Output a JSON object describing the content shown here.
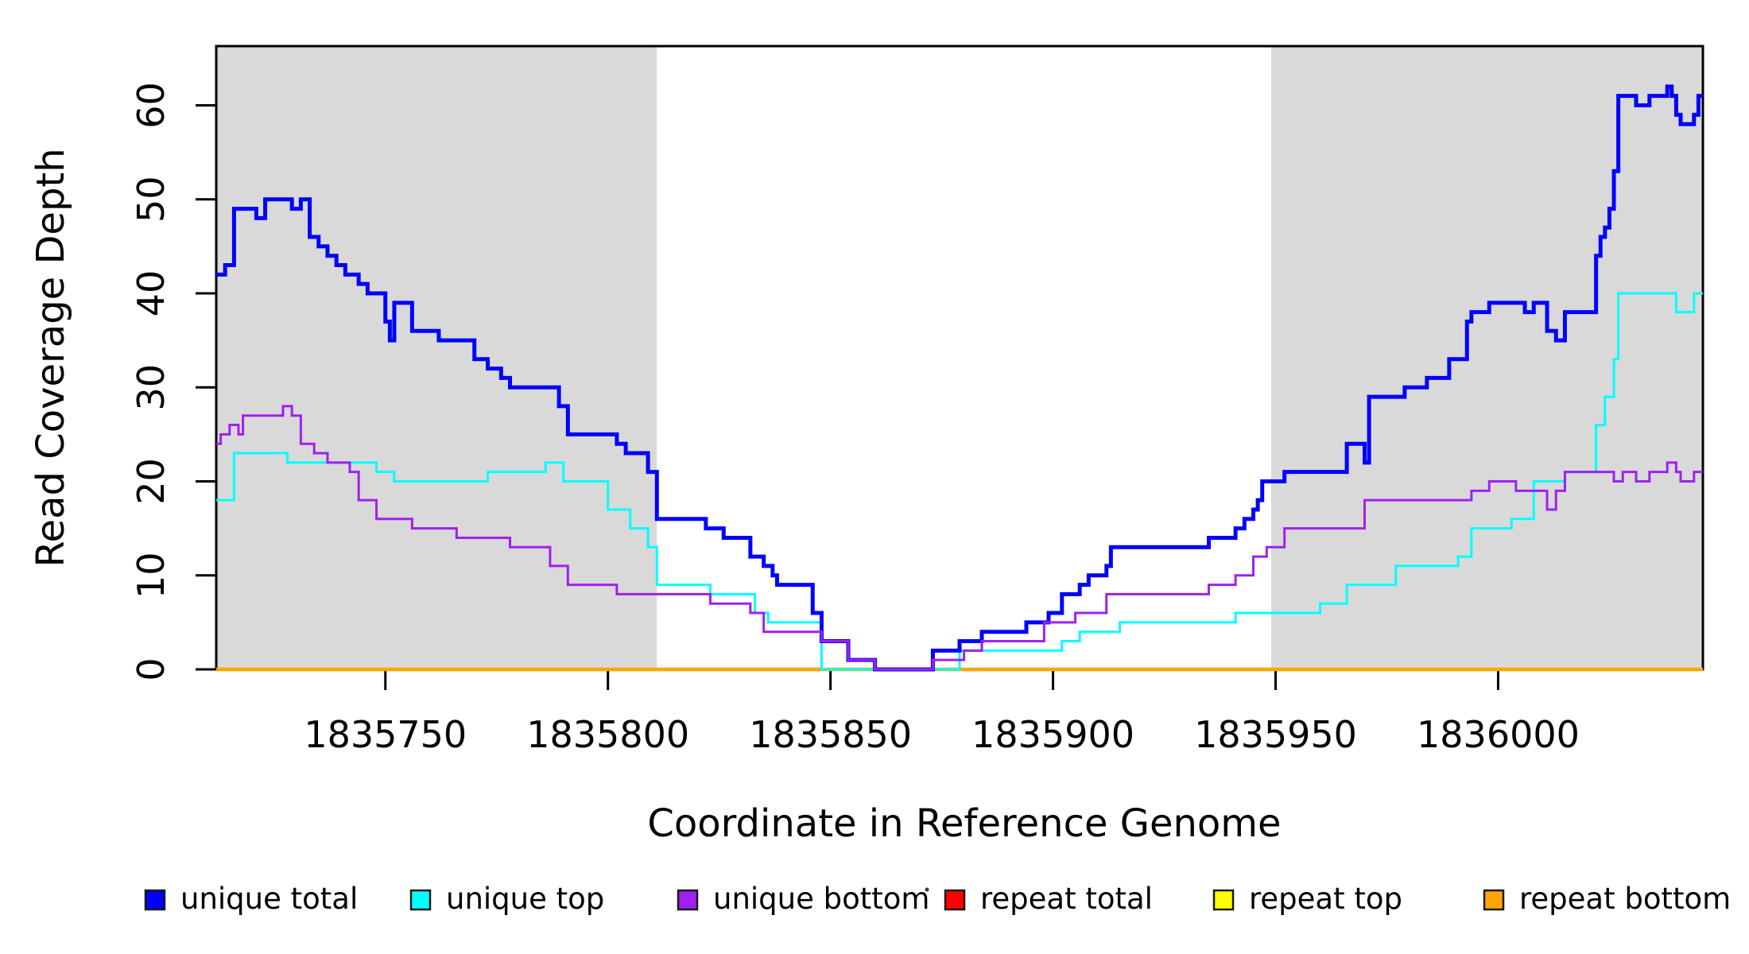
{
  "y_axis": {
    "label": "Read Coverage Depth",
    "ticks": [
      0,
      10,
      20,
      30,
      40,
      50,
      60
    ]
  },
  "x_axis": {
    "label": "Coordinate in Reference Genome",
    "ticks": [
      1835750,
      1835800,
      1835850,
      1835900,
      1835950,
      1836000
    ]
  },
  "legend": [
    {
      "label": "unique total",
      "color": "#0000FF"
    },
    {
      "label": "unique top",
      "color": "#00FFFF"
    },
    {
      "label": "unique bottom",
      "color": "#A020F0"
    },
    {
      "label": "repeat total",
      "color": "#FF0000"
    },
    {
      "label": "repeat top",
      "color": "#FFFF00"
    },
    {
      "label": "repeat bottom",
      "color": "#FFA500"
    }
  ],
  "chart_data": {
    "type": "line",
    "subtype": "step-after",
    "title": "",
    "xlabel": "Coordinate in Reference Genome",
    "ylabel": "Read Coverage Depth",
    "xlim": [
      1835712,
      1836046
    ],
    "ylim": [
      0,
      66.3
    ],
    "x_ticks": [
      1835750,
      1835800,
      1835850,
      1835900,
      1835950,
      1836000
    ],
    "y_ticks": [
      0,
      10,
      20,
      30,
      40,
      50,
      60
    ],
    "grid": false,
    "legend_position": "bottom",
    "band_color": "#D9D9D9",
    "shaded_regions": [
      {
        "x0": 1835712,
        "x1": 1835811,
        "meaning": "unique-flank region"
      },
      {
        "x0": 1835949,
        "x1": 1836046,
        "meaning": "unique-flank region"
      }
    ],
    "series": [
      {
        "name": "repeat total",
        "color": "#FF0000",
        "width": 3,
        "points": [
          [
            1835712,
            0
          ]
        ]
      },
      {
        "name": "repeat top",
        "color": "#FFFF00",
        "width": 3,
        "points": [
          [
            1835712,
            0
          ]
        ]
      },
      {
        "name": "repeat bottom",
        "color": "#FFA500",
        "width": 4.5,
        "points": [
          [
            1835712,
            0
          ]
        ]
      },
      {
        "name": "unique top",
        "color": "#00FFFF",
        "width": 3,
        "points": [
          [
            1835712,
            18
          ],
          [
            1835716,
            23
          ],
          [
            1835728,
            22
          ],
          [
            1835748,
            21
          ],
          [
            1835752,
            20
          ],
          [
            1835773,
            21
          ],
          [
            1835786,
            22
          ],
          [
            1835790,
            20
          ],
          [
            1835800,
            17
          ],
          [
            1835805,
            15
          ],
          [
            1835809,
            13
          ],
          [
            1835811,
            9
          ],
          [
            1835823,
            8
          ],
          [
            1835833,
            6
          ],
          [
            1835836,
            5
          ],
          [
            1835848,
            0
          ],
          [
            1835879,
            2
          ],
          [
            1835902,
            3
          ],
          [
            1835906,
            4
          ],
          [
            1835915,
            5
          ],
          [
            1835941,
            6
          ],
          [
            1835960,
            7
          ],
          [
            1835966,
            9
          ],
          [
            1835977,
            11
          ],
          [
            1835991,
            12
          ],
          [
            1835994,
            15
          ],
          [
            1836003,
            16
          ],
          [
            1836008,
            20
          ],
          [
            1836015,
            21
          ],
          [
            1836022,
            26
          ],
          [
            1836024,
            29
          ],
          [
            1836026,
            33
          ],
          [
            1836027,
            40
          ],
          [
            1836040,
            38
          ],
          [
            1836044,
            40
          ]
        ]
      },
      {
        "name": "unique total",
        "color": "#0000FF",
        "width": 5,
        "points": [
          [
            1835712,
            42
          ],
          [
            1835714,
            43
          ],
          [
            1835716,
            49
          ],
          [
            1835721,
            48
          ],
          [
            1835723,
            50
          ],
          [
            1835729,
            49
          ],
          [
            1835731,
            50
          ],
          [
            1835733,
            46
          ],
          [
            1835735,
            45
          ],
          [
            1835737,
            44
          ],
          [
            1835739,
            43
          ],
          [
            1835741,
            42
          ],
          [
            1835744,
            41
          ],
          [
            1835746,
            40
          ],
          [
            1835750,
            37
          ],
          [
            1835751,
            35
          ],
          [
            1835752,
            39
          ],
          [
            1835756,
            36
          ],
          [
            1835762,
            35
          ],
          [
            1835770,
            33
          ],
          [
            1835773,
            32
          ],
          [
            1835776,
            31
          ],
          [
            1835778,
            30
          ],
          [
            1835789,
            28
          ],
          [
            1835791,
            25
          ],
          [
            1835802,
            24
          ],
          [
            1835804,
            23
          ],
          [
            1835809,
            21
          ],
          [
            1835811,
            16
          ],
          [
            1835822,
            15
          ],
          [
            1835826,
            14
          ],
          [
            1835832,
            12
          ],
          [
            1835835,
            11
          ],
          [
            1835837,
            10
          ],
          [
            1835838,
            9
          ],
          [
            1835846,
            6
          ],
          [
            1835848,
            3
          ],
          [
            1835854,
            1
          ],
          [
            1835860,
            0
          ],
          [
            1835873,
            2
          ],
          [
            1835879,
            3
          ],
          [
            1835884,
            4
          ],
          [
            1835894,
            5
          ],
          [
            1835899,
            6
          ],
          [
            1835902,
            8
          ],
          [
            1835906,
            9
          ],
          [
            1835908,
            10
          ],
          [
            1835912,
            11
          ],
          [
            1835913,
            13
          ],
          [
            1835935,
            14
          ],
          [
            1835941,
            15
          ],
          [
            1835943,
            16
          ],
          [
            1835945,
            17
          ],
          [
            1835946,
            18
          ],
          [
            1835947,
            20
          ],
          [
            1835952,
            21
          ],
          [
            1835966,
            24
          ],
          [
            1835970,
            22
          ],
          [
            1835971,
            29
          ],
          [
            1835979,
            30
          ],
          [
            1835984,
            31
          ],
          [
            1835989,
            33
          ],
          [
            1835993,
            37
          ],
          [
            1835994,
            38
          ],
          [
            1835998,
            39
          ],
          [
            1836006,
            38
          ],
          [
            1836008,
            39
          ],
          [
            1836011,
            36
          ],
          [
            1836013,
            35
          ],
          [
            1836015,
            38
          ],
          [
            1836022,
            44
          ],
          [
            1836023,
            46
          ],
          [
            1836024,
            47
          ],
          [
            1836025,
            49
          ],
          [
            1836026,
            53
          ],
          [
            1836027,
            61
          ],
          [
            1836031,
            60
          ],
          [
            1836034,
            61
          ],
          [
            1836038,
            62
          ],
          [
            1836039,
            61
          ],
          [
            1836040,
            59
          ],
          [
            1836041,
            58
          ],
          [
            1836044,
            59
          ],
          [
            1836045,
            61
          ]
        ]
      },
      {
        "name": "unique bottom",
        "color": "#A020F0",
        "width": 3,
        "points": [
          [
            1835712,
            24
          ],
          [
            1835713,
            25
          ],
          [
            1835715,
            26
          ],
          [
            1835717,
            25
          ],
          [
            1835718,
            27
          ],
          [
            1835727,
            28
          ],
          [
            1835729,
            27
          ],
          [
            1835731,
            24
          ],
          [
            1835734,
            23
          ],
          [
            1835737,
            22
          ],
          [
            1835742,
            21
          ],
          [
            1835744,
            18
          ],
          [
            1835748,
            16
          ],
          [
            1835756,
            15
          ],
          [
            1835766,
            14
          ],
          [
            1835778,
            13
          ],
          [
            1835787,
            11
          ],
          [
            1835791,
            9
          ],
          [
            1835802,
            8
          ],
          [
            1835823,
            7
          ],
          [
            1835832,
            6
          ],
          [
            1835835,
            4
          ],
          [
            1835848,
            3
          ],
          [
            1835854,
            1
          ],
          [
            1835860,
            0
          ],
          [
            1835873,
            1
          ],
          [
            1835880,
            2
          ],
          [
            1835884,
            3
          ],
          [
            1835898,
            5
          ],
          [
            1835905,
            6
          ],
          [
            1835912,
            8
          ],
          [
            1835935,
            9
          ],
          [
            1835941,
            10
          ],
          [
            1835945,
            12
          ],
          [
            1835948,
            13
          ],
          [
            1835952,
            15
          ],
          [
            1835970,
            18
          ],
          [
            1835994,
            19
          ],
          [
            1835998,
            20
          ],
          [
            1836004,
            19
          ],
          [
            1836011,
            17
          ],
          [
            1836013,
            19
          ],
          [
            1836015,
            21
          ],
          [
            1836026,
            20
          ],
          [
            1836028,
            21
          ],
          [
            1836031,
            20
          ],
          [
            1836034,
            21
          ],
          [
            1836038,
            22
          ],
          [
            1836040,
            21
          ],
          [
            1836041,
            20
          ],
          [
            1836044,
            21
          ]
        ]
      }
    ],
    "draw_order": [
      "repeat total",
      "repeat top",
      "repeat bottom",
      "unique top",
      "unique total",
      "unique bottom"
    ]
  }
}
